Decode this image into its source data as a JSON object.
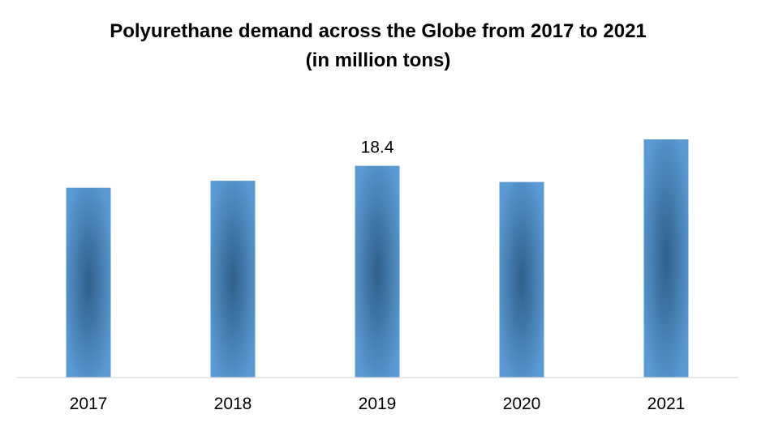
{
  "chart_data": {
    "type": "bar",
    "title": "Polyurethane demand across the Globe from 2017 to 2021",
    "subtitle": "(in million tons)",
    "categories": [
      "2017",
      "2018",
      "2019",
      "2020",
      "2021"
    ],
    "values": [
      16.5,
      17.1,
      18.4,
      17.0,
      20.7
    ],
    "data_labels": [
      "",
      "",
      "18.4",
      "",
      ""
    ],
    "xlabel": "",
    "ylabel": "",
    "ylim": [
      0,
      20.7
    ],
    "grid": false,
    "legend": "none",
    "colors": {
      "bar_edge": "#5B9BD5",
      "bar_center": "#2F5F8A",
      "axis": "#D9D9D9"
    }
  }
}
